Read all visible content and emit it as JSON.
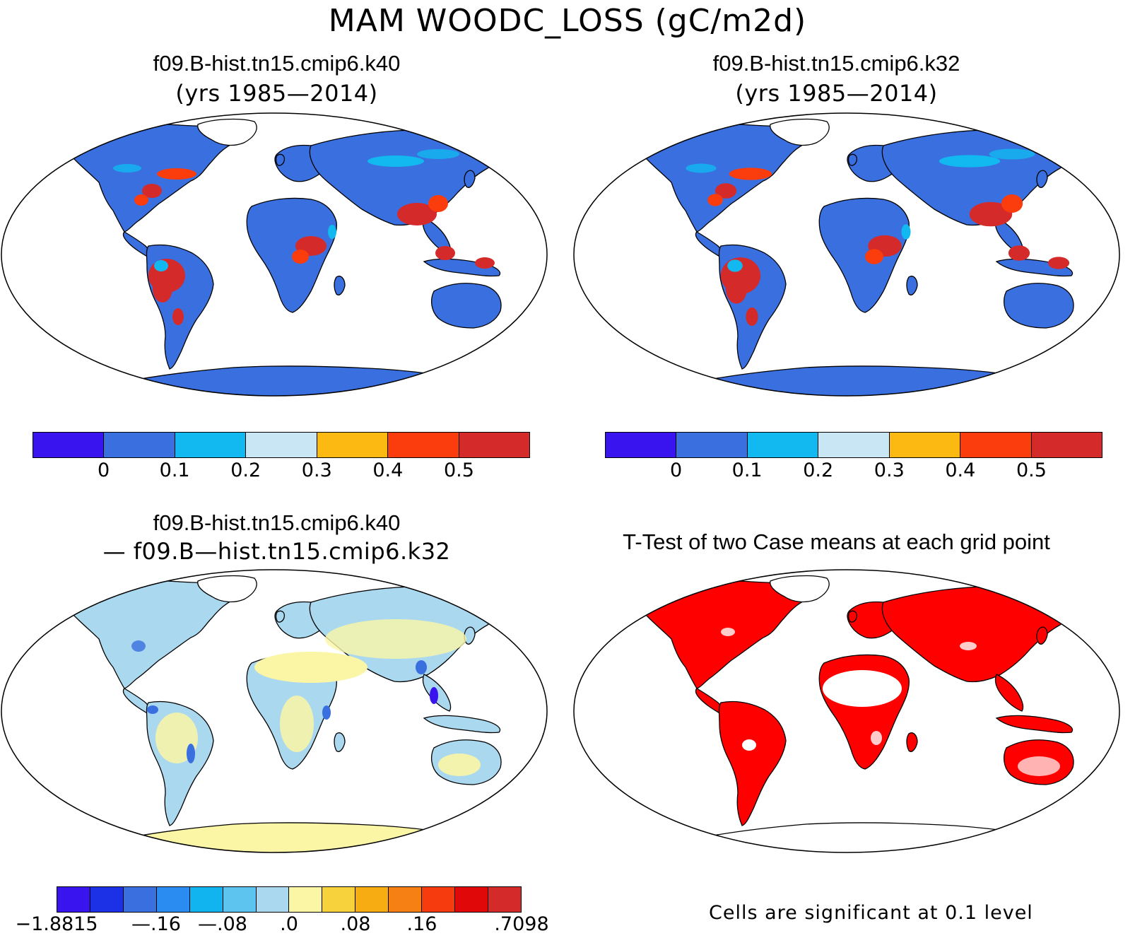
{
  "title": "MAM WOODC_LOSS (gC/m2d)",
  "panels": [
    {
      "id": "case-k40",
      "title": "f09.B-hist.tn15.cmip6.k40",
      "subtitle": "(yrs 1985—2014)"
    },
    {
      "id": "case-k32",
      "title": "f09.B-hist.tn15.cmip6.k32",
      "subtitle": "(yrs 1985—2014)"
    },
    {
      "id": "diff",
      "title": "f09.B-hist.tn15.cmip6.k40",
      "subtitle": "— f09.B—hist.tn15.cmip6.k32"
    },
    {
      "id": "ttest",
      "title": "T-Test of two Case means at each grid point",
      "subtitle": ""
    }
  ],
  "colorbar_case": {
    "colors": [
      "#3a14ee",
      "#3a6fe0",
      "#12b8f0",
      "#c8e6f4",
      "#fbb911",
      "#fb3c0c",
      "#d42a2a"
    ],
    "labels": [
      "0",
      "0.1",
      "0.2",
      "0.3",
      "0.4",
      "0.5"
    ]
  },
  "colorbar_diff": {
    "colors": [
      "#3a14ee",
      "#1c31e6",
      "#3a6fe0",
      "#2a8cf0",
      "#12b4f0",
      "#5cc4ef",
      "#aad8ef",
      "#fbf6a6",
      "#f8d23c",
      "#f7ad12",
      "#f78014",
      "#f63c0e",
      "#e00808",
      "#d42a2a"
    ],
    "labels": [
      "−1.8815",
      "—.16",
      "—.08",
      ".0",
      ".08",
      ".16",
      ".7098"
    ]
  },
  "ttest_note": "Cells are significant at 0.1 level",
  "map_colors": {
    "ocean": "#ffffff",
    "case_land": "#3a6fe0",
    "case_hot": "#d42a2a",
    "case_warm": "#fb3c0c",
    "case_light": "#12b8f0",
    "diff_land": "#aad8ef",
    "diff_pos": "#fbf6a6",
    "diff_neg": "#3a6fe0",
    "signif": "#ff0000"
  }
}
